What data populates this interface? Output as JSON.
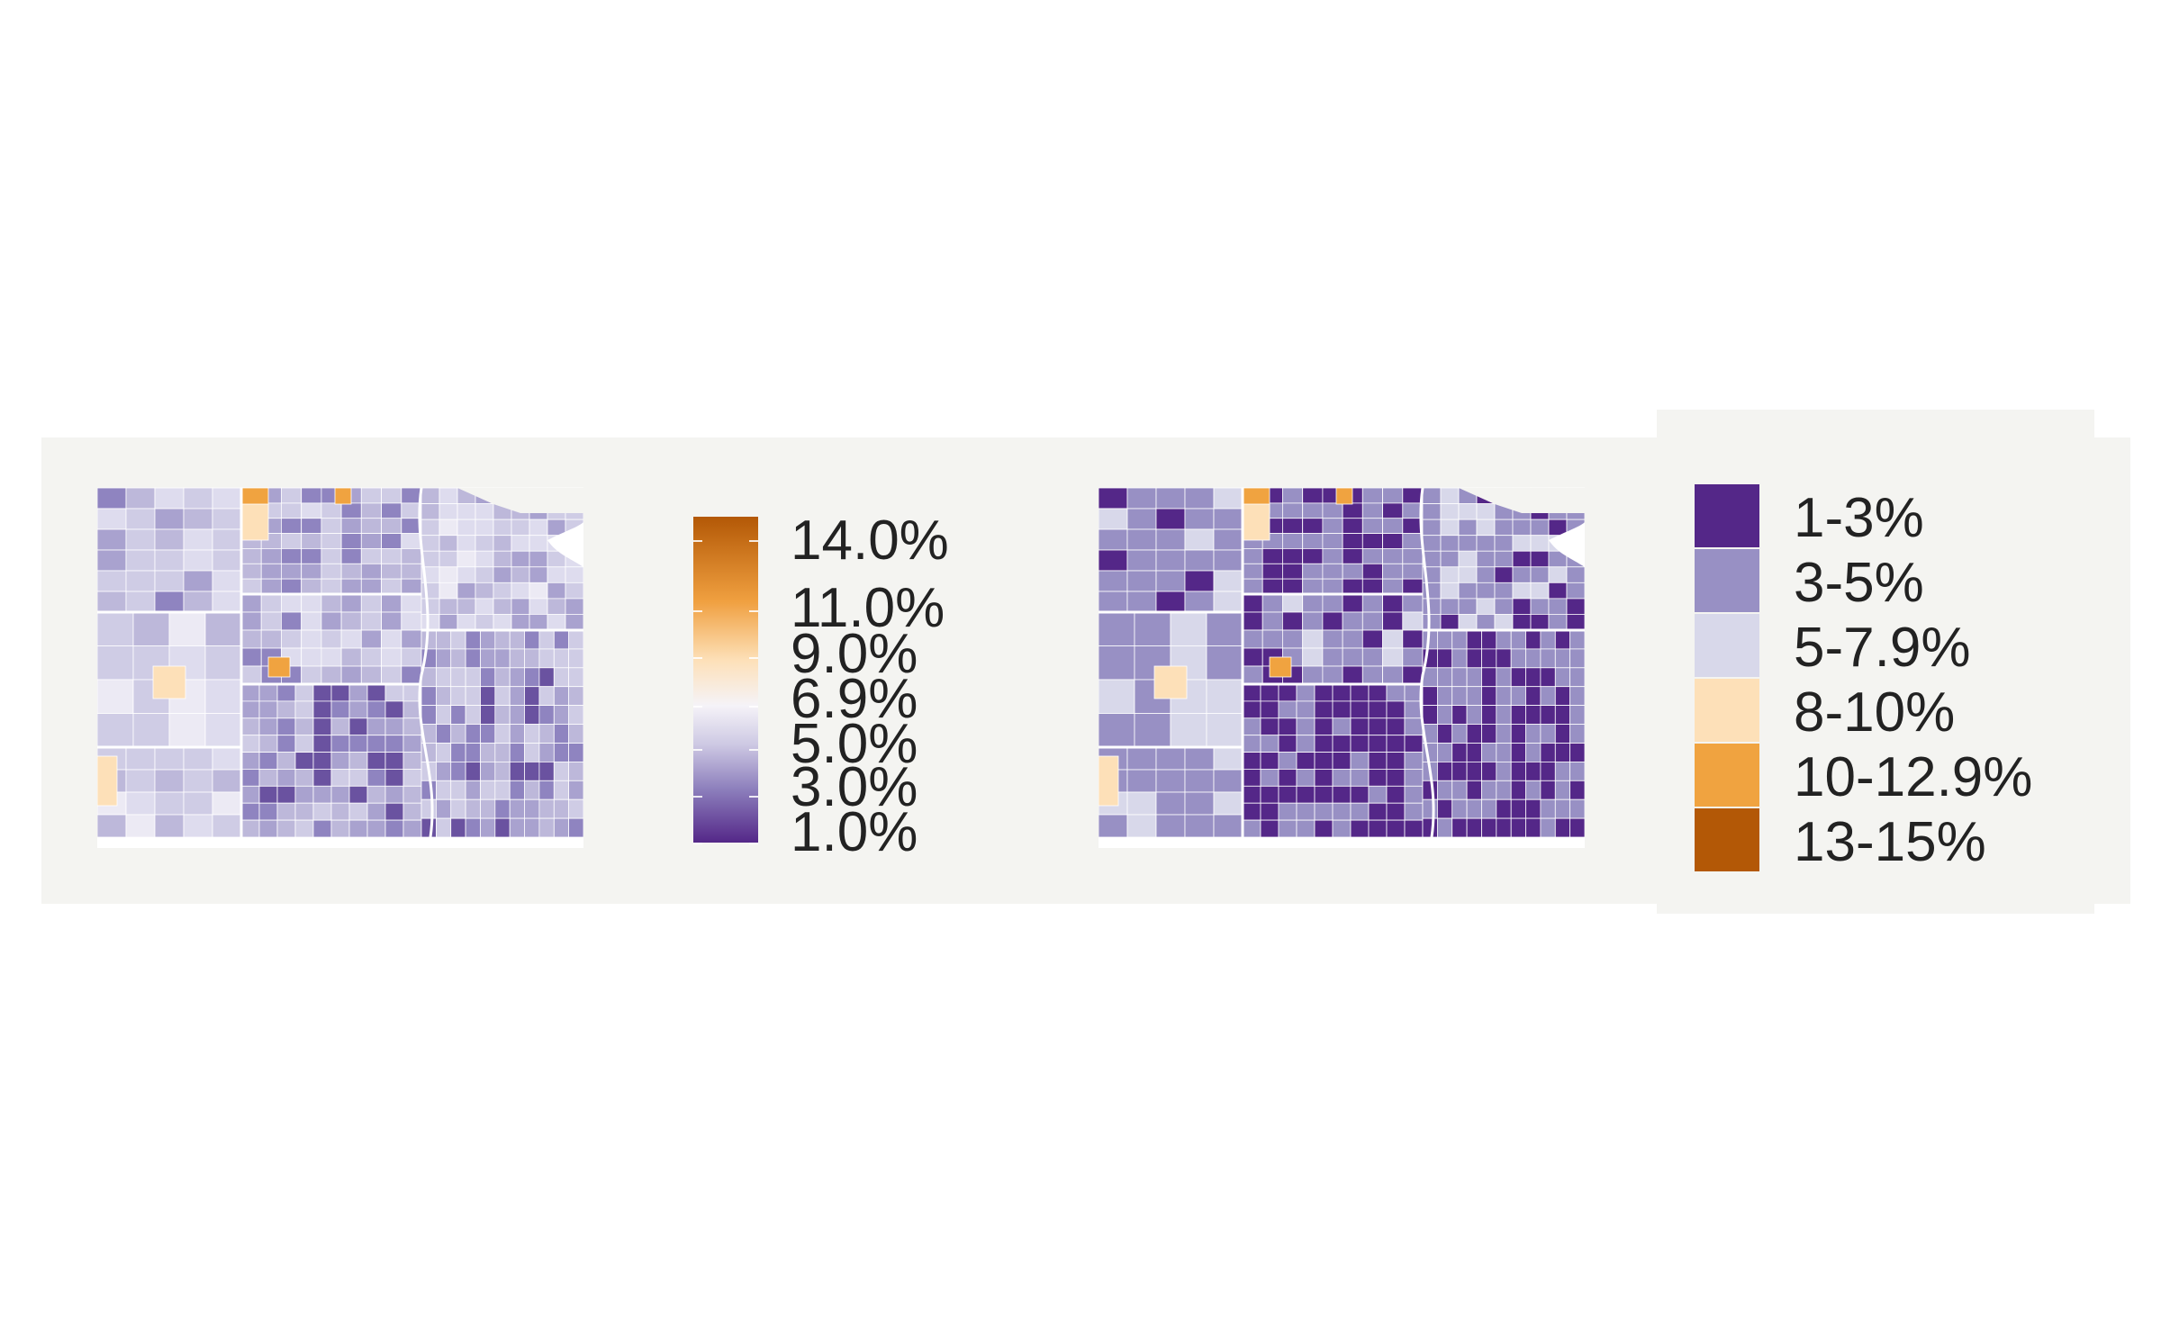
{
  "colorbar": {
    "ticks": [
      {
        "label": "14.0%",
        "value": 14.0
      },
      {
        "label": "11.0%",
        "value": 11.0
      },
      {
        "label": "9.0%",
        "value": 9.0
      },
      {
        "label": "6.9%",
        "value": 6.9
      },
      {
        "label": "5.0%",
        "value": 5.0
      },
      {
        "label": "3.0%",
        "value": 3.0
      },
      {
        "label": "1.0%",
        "value": 1.0
      }
    ],
    "range": [
      1.0,
      15.0
    ],
    "colors": [
      "#542788",
      "#8b7dbb",
      "#cdc8e3",
      "#f5f3f8",
      "#fde0b8",
      "#f0a040",
      "#b35806"
    ]
  },
  "legend": {
    "items": [
      {
        "label": "1-3%",
        "color": "#542788"
      },
      {
        "label": "3-5%",
        "color": "#9890c4"
      },
      {
        "label": "5-7.9%",
        "color": "#d8d8ea"
      },
      {
        "label": "8-10%",
        "color": "#fde0b8"
      },
      {
        "label": "10-12.9%",
        "color": "#f0a340"
      },
      {
        "label": "13-15%",
        "color": "#b35806"
      }
    ]
  }
}
